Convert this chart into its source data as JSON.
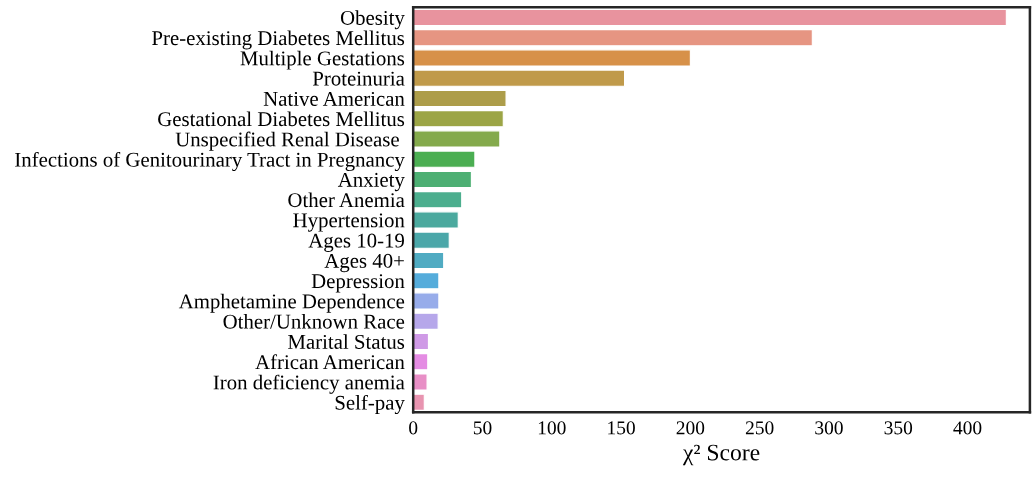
{
  "chart_data": {
    "type": "bar",
    "orientation": "horizontal",
    "xlabel": "χ² Score",
    "categories": [
      "Obesity",
      "Pre-existing Diabetes Mellitus",
      "Multiple Gestations",
      "Proteinuria",
      "Native American",
      "Gestational Diabetes Mellitus",
      "Unspecified Renal Disease ",
      "Infections of Genitourinary Tract in Pregnancy",
      "Anxiety",
      "Other Anemia",
      "Hypertension",
      "Ages 10-19",
      "Ages 40+",
      "Depression",
      "Amphetamine Dependence",
      "Other/Unknown Race",
      "Marital Status",
      "African American",
      "Iron deficiency anemia",
      "Self-pay"
    ],
    "values": [
      428,
      288,
      200,
      152.5,
      67,
      65,
      62.5,
      44.5,
      42,
      35,
      32.5,
      26,
      22,
      18.5,
      18.5,
      18,
      11,
      10.5,
      10,
      8
    ],
    "colors": [
      "#e8939e",
      "#e69582",
      "#d79149",
      "#c09a4a",
      "#ad9d4a",
      "#9ca546",
      "#84aa4c",
      "#4bae52",
      "#4daf73",
      "#4cae8e",
      "#4ba99e",
      "#4ba7a9",
      "#50abc2",
      "#55acdb",
      "#97acea",
      "#b6a7ea",
      "#cf9ae6",
      "#e48ce3",
      "#e88fc6",
      "#e894b0"
    ],
    "xlim": [
      0,
      445
    ],
    "xticks": [
      0,
      50,
      100,
      150,
      200,
      250,
      300,
      350,
      400
    ],
    "grid": false,
    "legend": false
  }
}
